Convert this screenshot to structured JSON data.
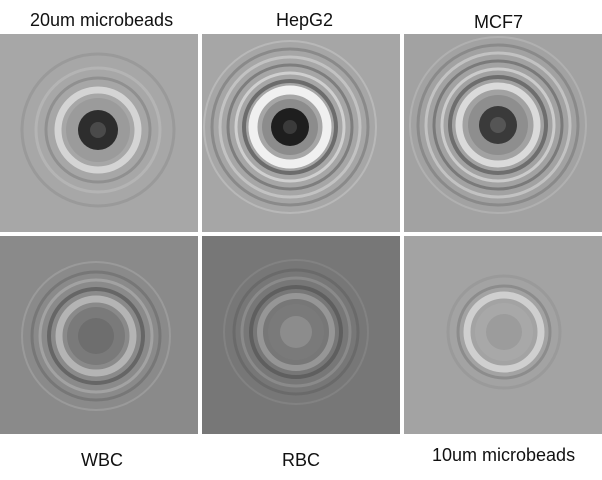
{
  "labels": {
    "top": [
      "20um microbeads",
      "HepG2",
      "MCF7"
    ],
    "bottom": [
      "WBC",
      "RBC",
      "10um microbeads"
    ]
  },
  "panels": [
    {
      "name": "beads-20um",
      "bg": "#a7a7a7",
      "core": "#2b2b2b",
      "bright_ring": "#d6d6d6",
      "dark_ring": "#8a8a8a"
    },
    {
      "name": "hepg2",
      "bg": "#a6a6a6",
      "core": "#1f1f1f",
      "bright_ring": "#f2f2f2",
      "dark_ring": "#6c6c6c"
    },
    {
      "name": "mcf7",
      "bg": "#a2a2a2",
      "core": "#3a3a3a",
      "bright_ring": "#dcdcdc",
      "dark_ring": "#6e6e6e"
    },
    {
      "name": "wbc",
      "bg": "#8a8a8a",
      "core": "#6f6f6f",
      "bright_ring": "#b4b4b4",
      "dark_ring": "#656565"
    },
    {
      "name": "rbc",
      "bg": "#7a7a7a",
      "core": "#8f8f8f",
      "bright_ring": "#9a9a9a",
      "dark_ring": "#606060"
    },
    {
      "name": "beads-10um",
      "bg": "#a3a3a3",
      "core": "#9a9a9a",
      "bright_ring": "#cfcfcf",
      "dark_ring": "#8a8a8a"
    }
  ]
}
